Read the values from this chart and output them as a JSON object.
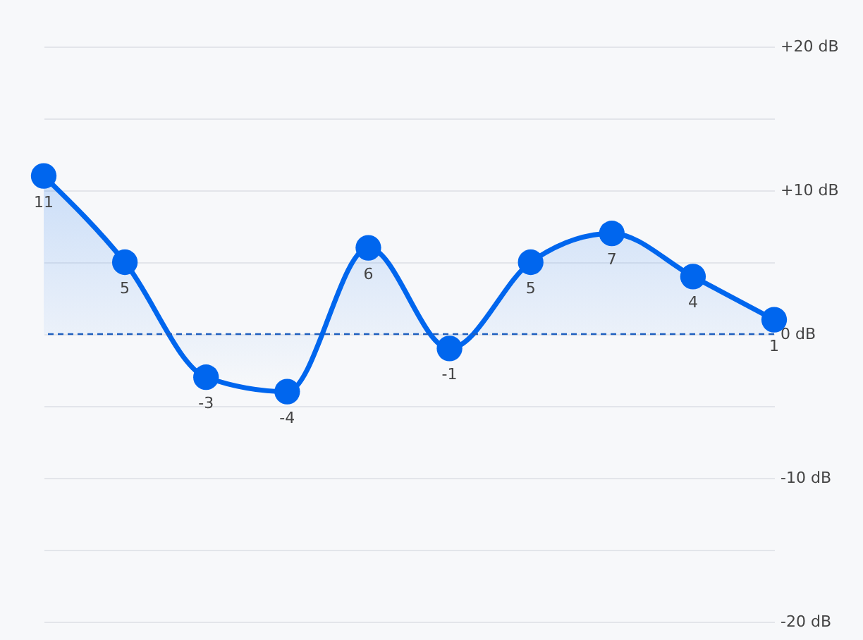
{
  "chart_data": {
    "type": "area",
    "categories": [
      null,
      null,
      null,
      null,
      null,
      null,
      null,
      null,
      null,
      null
    ],
    "series": [
      {
        "color": "#0066ee",
        "values": [
          11,
          5,
          -3,
          -4,
          6,
          -1,
          5,
          7,
          4,
          1
        ]
      }
    ],
    "ylim": [
      -20,
      20
    ],
    "yticks": [
      {
        "value": -20,
        "label": "-20 dB"
      },
      {
        "value": -15,
        "label": null
      },
      {
        "value": -10,
        "label": "-10 dB"
      },
      {
        "value": -5,
        "label": null
      },
      {
        "value": 0,
        "label": "0 dB"
      },
      {
        "value": 5,
        "label": null
      },
      {
        "value": 10,
        "label": "+10 dB"
      },
      {
        "value": 15,
        "label": null
      },
      {
        "value": 20,
        "label": "+20 dB"
      }
    ],
    "ref_lines": [
      {
        "axis": "y",
        "value": 0,
        "color": "#1f5fbf",
        "line_style": "dashed"
      }
    ],
    "grid": "y",
    "marker": "circle",
    "line_style": "solid",
    "data_labels": true
  }
}
